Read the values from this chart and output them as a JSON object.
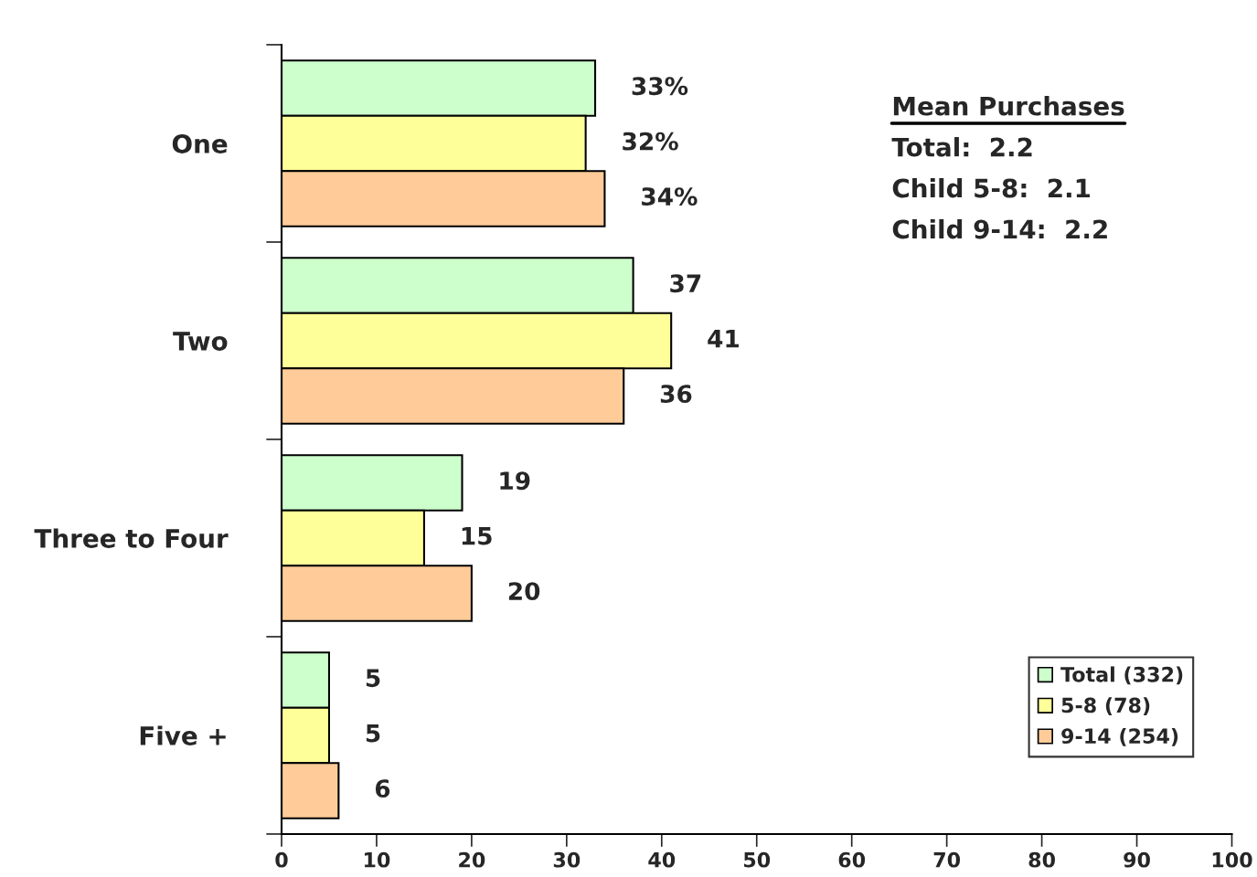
{
  "chart_data": {
    "type": "bar",
    "orientation": "horizontal",
    "categories": [
      "One",
      "Two",
      "Three to Four",
      "Five +"
    ],
    "series": [
      {
        "name": "Total (332)",
        "color": "#ccffcc",
        "values": [
          33,
          37,
          19,
          5
        ],
        "value_labels": [
          "33%",
          "37",
          "19",
          "5"
        ]
      },
      {
        "name": "5-8 (78)",
        "color": "#ffff99",
        "values": [
          32,
          41,
          15,
          5
        ],
        "value_labels": [
          "32%",
          "41",
          "15",
          "5"
        ]
      },
      {
        "name": "9-14 (254)",
        "color": "#ffcc99",
        "values": [
          34,
          36,
          20,
          6
        ],
        "value_labels": [
          "34%",
          "36",
          "20",
          "6"
        ]
      }
    ],
    "xlim": [
      0,
      100
    ],
    "xticks": [
      0,
      10,
      20,
      30,
      40,
      50,
      60,
      70,
      80,
      90,
      100
    ],
    "legend": "bottom right",
    "annotations": [
      "Mean Purchases",
      "Total:  2.2",
      "Child 5-8:  2.1",
      "Child 9-14:  2.2"
    ]
  }
}
